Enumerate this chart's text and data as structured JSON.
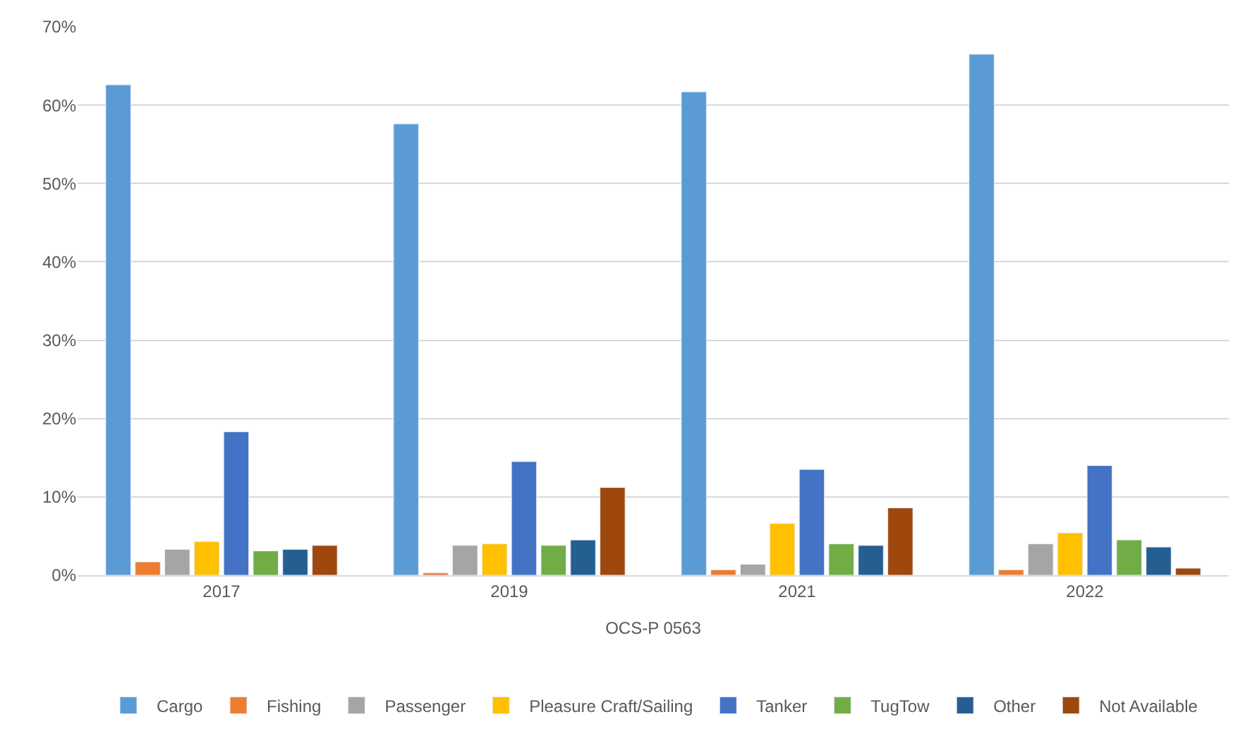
{
  "chart_data": {
    "type": "bar",
    "categories": [
      "2017",
      "2019",
      "2021",
      "2022"
    ],
    "xlabel": "OCS-P 0563",
    "series": [
      {
        "name": "Cargo",
        "color": "#5b9bd5",
        "values": [
          62.6,
          57.6,
          61.7,
          66.5
        ]
      },
      {
        "name": "Fishing",
        "color": "#ed7d31",
        "values": [
          1.7,
          0.3,
          0.7,
          0.7
        ]
      },
      {
        "name": "Passenger",
        "color": "#a5a5a5",
        "values": [
          3.3,
          3.8,
          1.4,
          4.0
        ]
      },
      {
        "name": "Pleasure Craft/Sailing",
        "color": "#ffc000",
        "values": [
          4.3,
          4.0,
          6.6,
          5.4
        ]
      },
      {
        "name": "Tanker",
        "color": "#4472c4",
        "values": [
          18.3,
          14.5,
          13.5,
          14.0
        ]
      },
      {
        "name": "TugTow",
        "color": "#70ad47",
        "values": [
          3.1,
          3.8,
          4.0,
          4.5
        ]
      },
      {
        "name": "Other",
        "color": "#255e91",
        "values": [
          3.3,
          4.5,
          3.8,
          3.6
        ]
      },
      {
        "name": "Not Available",
        "color": "#9e480e",
        "values": [
          3.8,
          11.2,
          8.6,
          0.9
        ]
      }
    ],
    "ylim": [
      0,
      70
    ],
    "yticks": [
      {
        "value": 0,
        "label": "0%"
      },
      {
        "value": 10,
        "label": "10%"
      },
      {
        "value": 20,
        "label": "20%"
      },
      {
        "value": 30,
        "label": "30%"
      },
      {
        "value": 40,
        "label": "40%"
      },
      {
        "value": 50,
        "label": "50%"
      },
      {
        "value": 60,
        "label": "60%"
      },
      {
        "value": 70,
        "label": "70%"
      }
    ],
    "grid": "y",
    "legend": "bottom"
  }
}
